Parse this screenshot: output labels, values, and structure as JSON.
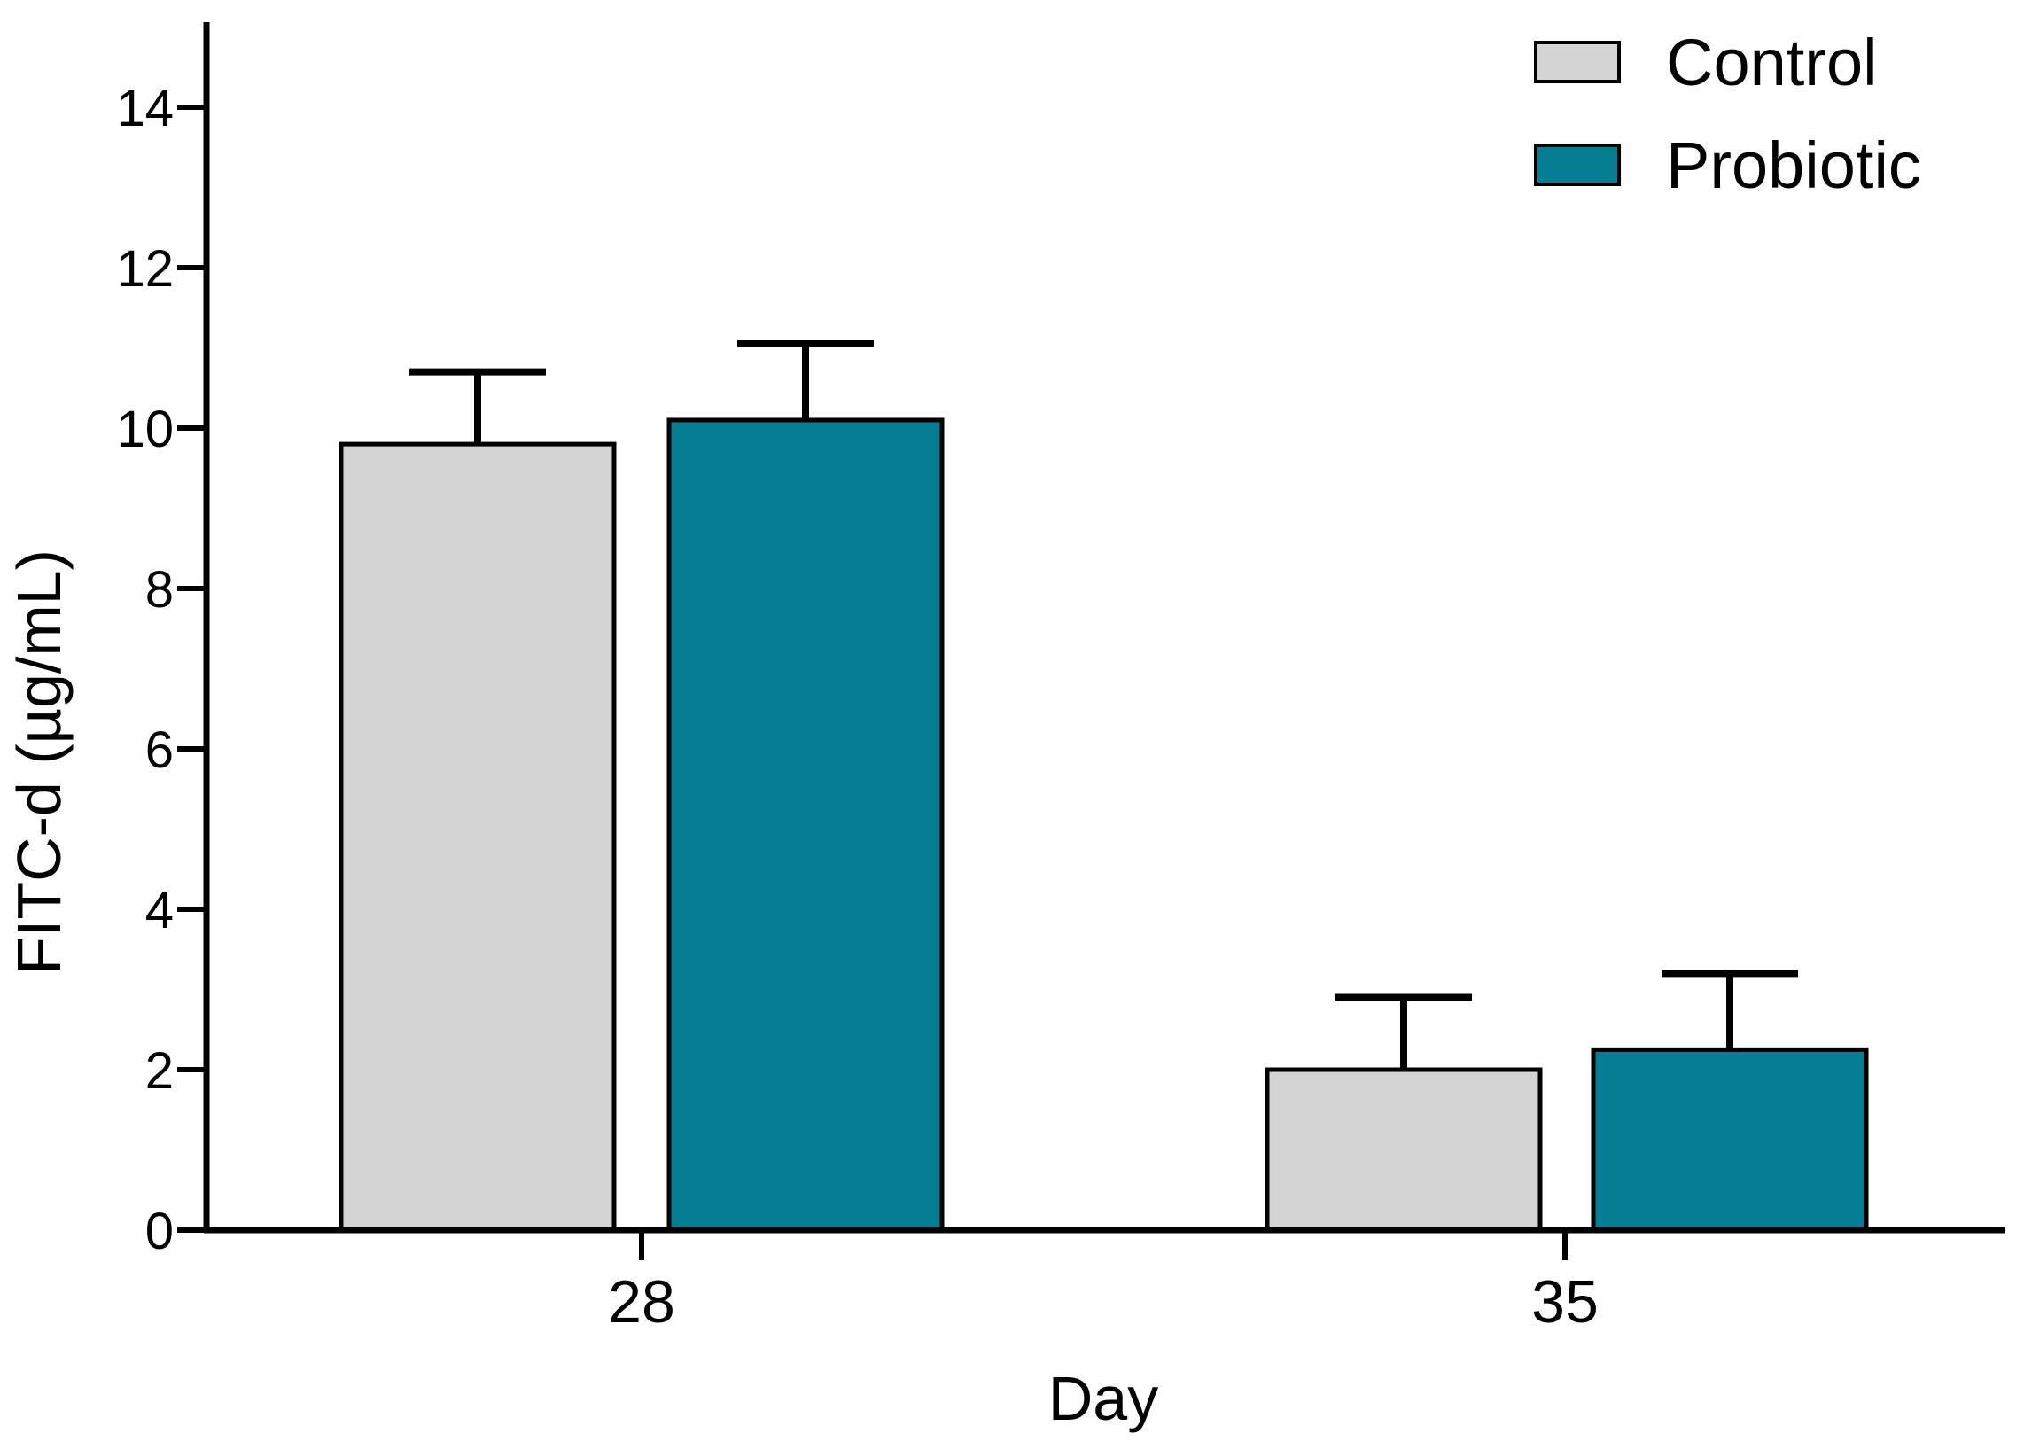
{
  "figure": {
    "background": "#ffffff",
    "axis_color": "#000000"
  },
  "chart_data": {
    "type": "bar",
    "title": "",
    "xlabel": "Day",
    "ylabel": "FITC-d (µg/mL)",
    "categories": [
      "28",
      "35"
    ],
    "series": [
      {
        "name": "Control",
        "color": "#d4d4d4",
        "values": [
          9.8,
          2.0
        ],
        "error_plus": [
          0.9,
          0.9
        ]
      },
      {
        "name": "Probiotic",
        "color": "#047e92",
        "values": [
          10.1,
          2.25
        ],
        "error_plus": [
          0.95,
          0.95
        ]
      }
    ],
    "ylim": [
      0,
      15
    ],
    "yticks": [
      0,
      2,
      4,
      6,
      8,
      10,
      12,
      14
    ],
    "grid": false,
    "error_bar_direction": "up",
    "bar_border_color": "#000000",
    "legend": {
      "position": "top-right",
      "entries": [
        {
          "label": "Control",
          "swatch_color": "#d4d4d4"
        },
        {
          "label": "Probiotic",
          "swatch_color": "#047e92"
        }
      ]
    }
  }
}
